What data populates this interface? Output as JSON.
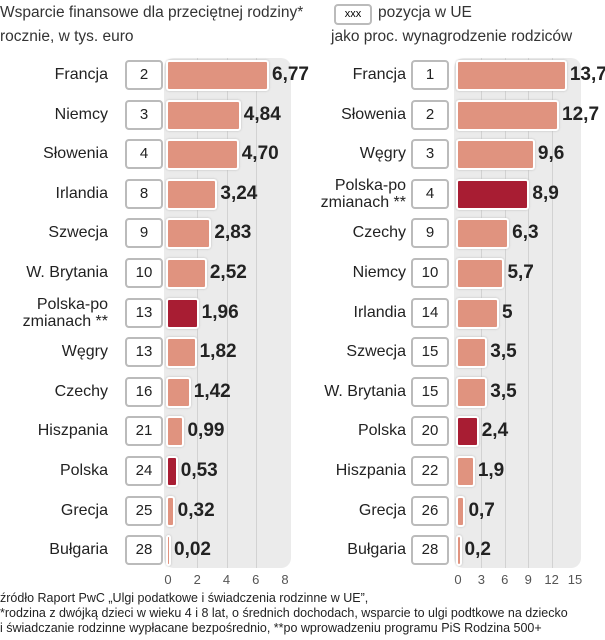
{
  "header": {
    "left_title": "Wsparcie finansowe dla przeciętnej rodziny*",
    "left_subtitle": "rocznie, w tys. euro",
    "legend_box": "xxx",
    "legend_text": "pozycja w UE",
    "right_subtitle": "jako proc. wynagrodzenie rodziców"
  },
  "colors": {
    "bar": "#e0937f",
    "highlight": "#a81d33",
    "panel": "#ebebeb"
  },
  "chart_data": [
    {
      "type": "bar",
      "title": "Wsparcie finansowe dla przeciętnej rodziny* rocznie, w tys. euro",
      "xlim": [
        0,
        8
      ],
      "ticks": [
        "0",
        "2",
        "4",
        "6",
        "8"
      ],
      "categories": [
        "Francja",
        "Niemcy",
        "Słowenia",
        "Irlandia",
        "Szwecja",
        "W. Brytania",
        "Polska-po\nzmianach **",
        "Węgry",
        "Czechy",
        "Hiszpania",
        "Polska",
        "Grecja",
        "Bułgaria"
      ],
      "ranks": [
        "2",
        "3",
        "4",
        "8",
        "9",
        "10",
        "13",
        "13",
        "16",
        "21",
        "24",
        "25",
        "28"
      ],
      "values": [
        6.77,
        4.84,
        4.7,
        3.24,
        2.83,
        2.52,
        1.96,
        1.82,
        1.42,
        0.99,
        0.53,
        0.32,
        0.02
      ],
      "labels": [
        "6,77",
        "4,84",
        "4,70",
        "3,24",
        "2,83",
        "2,52",
        "1,96",
        "1,82",
        "1,42",
        "0,99",
        "0,53",
        "0,32",
        "0,02"
      ],
      "highlight": [
        6,
        10
      ]
    },
    {
      "type": "bar",
      "title": "jako proc. wynagrodzenie rodziców",
      "xlim": [
        0,
        15
      ],
      "ticks": [
        "0",
        "3",
        "6",
        "9",
        "12",
        "15"
      ],
      "categories": [
        "Francja",
        "Słowenia",
        "Węgry",
        "Polska-po\nzmianach **",
        "Czechy",
        "Niemcy",
        "Irlandia",
        "Szwecja",
        "W. Brytania",
        "Polska",
        "Hiszpania",
        "Grecja",
        "Bułgaria"
      ],
      "ranks": [
        "1",
        "2",
        "3",
        "4",
        "9",
        "10",
        "14",
        "15",
        "15",
        "20",
        "22",
        "26",
        "28"
      ],
      "values": [
        13.7,
        12.7,
        9.6,
        8.9,
        6.3,
        5.7,
        5,
        3.5,
        3.5,
        2.4,
        1.9,
        0.7,
        0.2
      ],
      "labels": [
        "13,7",
        "12,7",
        "9,6",
        "8,9",
        "6,3",
        "5,7",
        "5",
        "3,5",
        "3,5",
        "2,4",
        "1,9",
        "0,7",
        "0,2"
      ],
      "highlight": [
        3,
        9
      ]
    }
  ],
  "footer": {
    "line1": "źródło Raport PwC „Ulgi podatkowe i świadczenia rodzinne w UE”,",
    "line2": "*rodzina z dwójką dzieci w wieku 4 i 8 lat, o średnich dochodach, wsparcie to ulgi podtkowe na dziecko",
    "line3": " i świadczanie rodzinne wypłacane bezpośrednio, **po wprowadzeniu programu PiS Rodzina 500+"
  }
}
